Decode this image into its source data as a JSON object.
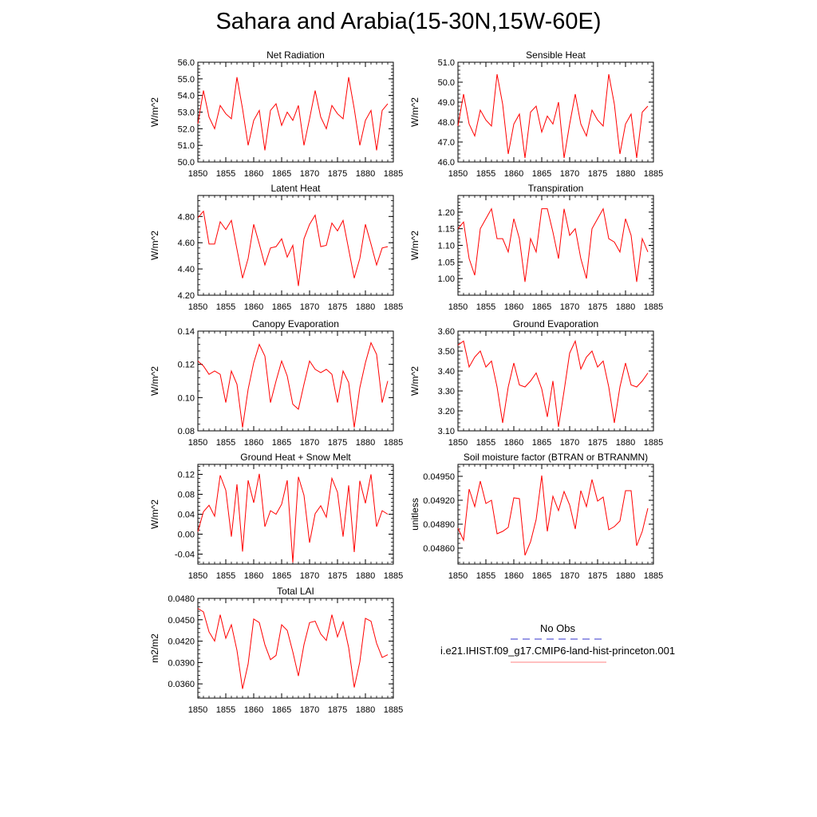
{
  "page": {
    "title": "Sahara and Arabia(15-30N,15W-60E)"
  },
  "legend": {
    "entries": [
      {
        "label": "No Obs",
        "color": "#3333cc",
        "style": "dashed"
      },
      {
        "label": "i.e21.IHIST.f09_g17.CMIP6-land-hist-princeton.001",
        "color": "#ff8080",
        "style": "solid"
      }
    ]
  },
  "colors": {
    "series": "#ff0000",
    "axes": "#000000"
  },
  "chart_data": [
    {
      "type": "line",
      "title": "Net Radiation",
      "xlabel": "",
      "ylabel": "W/m^2",
      "xlim": [
        1850,
        1885
      ],
      "ylim": [
        50.0,
        56.0
      ],
      "xticks": [
        "1850",
        "1855",
        "1860",
        "1865",
        "1870",
        "1875",
        "1880",
        "1885"
      ],
      "yticks": [
        "50.0",
        "51.0",
        "52.0",
        "53.0",
        "54.0",
        "55.0",
        "56.0"
      ],
      "series": [
        {
          "x_start": 1850,
          "values": [
            52.3,
            54.3,
            52.7,
            52.0,
            53.4,
            52.9,
            52.6,
            55.1,
            53.2,
            51.0,
            52.5,
            53.1,
            50.7,
            53.1,
            53.5,
            52.2,
            53.0,
            52.5,
            53.4,
            51.0,
            52.6,
            54.3,
            52.7,
            52.0,
            53.4,
            52.9,
            52.6,
            55.1,
            53.2,
            51.0,
            52.5,
            53.1,
            50.7,
            53.1,
            53.5
          ]
        }
      ]
    },
    {
      "type": "line",
      "title": "Sensible Heat",
      "xlabel": "",
      "ylabel": "W/m^2",
      "xlim": [
        1850,
        1885
      ],
      "ylim": [
        46.0,
        51.0
      ],
      "xticks": [
        "1850",
        "1855",
        "1860",
        "1865",
        "1870",
        "1875",
        "1880",
        "1885"
      ],
      "yticks": [
        "46.0",
        "47.0",
        "48.0",
        "49.0",
        "50.0",
        "51.0"
      ],
      "series": [
        {
          "x_start": 1850,
          "values": [
            47.8,
            49.4,
            47.9,
            47.3,
            48.6,
            48.1,
            47.8,
            50.4,
            48.9,
            46.4,
            47.9,
            48.4,
            46.2,
            48.5,
            48.8,
            47.5,
            48.3,
            47.9,
            49.0,
            46.2,
            47.9,
            49.4,
            47.9,
            47.3,
            48.6,
            48.1,
            47.8,
            50.4,
            48.9,
            46.4,
            47.9,
            48.4,
            46.2,
            48.5,
            48.8
          ]
        }
      ]
    },
    {
      "type": "line",
      "title": "Latent Heat",
      "xlabel": "",
      "ylabel": "W/m^2",
      "xlim": [
        1850,
        1885
      ],
      "ylim": [
        4.2,
        4.96
      ],
      "xticks": [
        "1850",
        "1855",
        "1860",
        "1865",
        "1870",
        "1875",
        "1880",
        "1885"
      ],
      "yticks": [
        "4.20",
        "4.40",
        "4.60",
        "4.80"
      ],
      "series": [
        {
          "x_start": 1850,
          "values": [
            4.79,
            4.84,
            4.59,
            4.59,
            4.76,
            4.7,
            4.77,
            4.55,
            4.33,
            4.48,
            4.74,
            4.59,
            4.43,
            4.56,
            4.57,
            4.63,
            4.49,
            4.58,
            4.27,
            4.63,
            4.74,
            4.81,
            4.57,
            4.58,
            4.75,
            4.69,
            4.77,
            4.55,
            4.33,
            4.48,
            4.74,
            4.59,
            4.43,
            4.56,
            4.57
          ]
        }
      ]
    },
    {
      "type": "line",
      "title": "Transpiration",
      "xlabel": "",
      "ylabel": "W/m^2",
      "xlim": [
        1850,
        1885
      ],
      "ylim": [
        0.95,
        1.25
      ],
      "xticks": [
        "1850",
        "1855",
        "1860",
        "1865",
        "1870",
        "1875",
        "1880",
        "1885"
      ],
      "yticks": [
        "1.00",
        "1.05",
        "1.10",
        "1.15",
        "1.20"
      ],
      "series": [
        {
          "x_start": 1850,
          "values": [
            1.15,
            1.17,
            1.06,
            1.01,
            1.15,
            1.18,
            1.21,
            1.12,
            1.12,
            1.08,
            1.18,
            1.12,
            0.99,
            1.12,
            1.08,
            1.21,
            1.21,
            1.14,
            1.06,
            1.21,
            1.13,
            1.15,
            1.06,
            1.0,
            1.15,
            1.18,
            1.21,
            1.12,
            1.11,
            1.08,
            1.18,
            1.13,
            0.99,
            1.12,
            1.08
          ]
        }
      ]
    },
    {
      "type": "line",
      "title": "Canopy Evaporation",
      "xlabel": "",
      "ylabel": "W/m^2",
      "xlim": [
        1850,
        1885
      ],
      "ylim": [
        0.08,
        0.14
      ],
      "xticks": [
        "1850",
        "1855",
        "1860",
        "1865",
        "1870",
        "1875",
        "1880",
        "1885"
      ],
      "yticks": [
        "0.08",
        "0.10",
        "0.12",
        "0.14"
      ],
      "series": [
        {
          "x_start": 1850,
          "values": [
            0.122,
            0.119,
            0.114,
            0.116,
            0.114,
            0.097,
            0.116,
            0.108,
            0.082,
            0.105,
            0.121,
            0.132,
            0.125,
            0.097,
            0.11,
            0.122,
            0.113,
            0.096,
            0.093,
            0.108,
            0.122,
            0.117,
            0.115,
            0.117,
            0.114,
            0.097,
            0.116,
            0.109,
            0.082,
            0.106,
            0.121,
            0.133,
            0.126,
            0.097,
            0.11
          ]
        }
      ]
    },
    {
      "type": "line",
      "title": "Ground Evaporation",
      "xlabel": "",
      "ylabel": "W/m^2",
      "xlim": [
        1850,
        1885
      ],
      "ylim": [
        3.1,
        3.6
      ],
      "xticks": [
        "1850",
        "1855",
        "1860",
        "1865",
        "1870",
        "1875",
        "1880",
        "1885"
      ],
      "yticks": [
        "3.10",
        "3.20",
        "3.30",
        "3.40",
        "3.50",
        "3.60"
      ],
      "series": [
        {
          "x_start": 1850,
          "values": [
            3.53,
            3.55,
            3.42,
            3.47,
            3.5,
            3.42,
            3.45,
            3.32,
            3.14,
            3.32,
            3.44,
            3.33,
            3.32,
            3.35,
            3.39,
            3.31,
            3.17,
            3.35,
            3.12,
            3.3,
            3.49,
            3.55,
            3.41,
            3.47,
            3.5,
            3.42,
            3.45,
            3.32,
            3.14,
            3.32,
            3.44,
            3.33,
            3.32,
            3.35,
            3.39
          ]
        }
      ]
    },
    {
      "type": "line",
      "title": "Ground Heat + Snow Melt",
      "xlabel": "",
      "ylabel": "W/m^2",
      "xlim": [
        1850,
        1885
      ],
      "ylim": [
        -0.06,
        0.14
      ],
      "xticks": [
        "1850",
        "1855",
        "1860",
        "1865",
        "1870",
        "1875",
        "1880",
        "1885"
      ],
      "yticks": [
        "-0.04",
        "0.00",
        "0.04",
        "0.08",
        "0.12"
      ],
      "series": [
        {
          "x_start": 1850,
          "values": [
            0.005,
            0.045,
            0.058,
            0.036,
            0.118,
            0.088,
            -0.005,
            0.1,
            -0.035,
            0.108,
            0.063,
            0.121,
            0.015,
            0.047,
            0.04,
            0.06,
            0.108,
            -0.057,
            0.115,
            0.078,
            -0.017,
            0.041,
            0.057,
            0.034,
            0.112,
            0.084,
            -0.005,
            0.098,
            -0.036,
            0.107,
            0.062,
            0.12,
            0.015,
            0.047,
            0.04
          ]
        }
      ]
    },
    {
      "type": "line",
      "title": "Soil moisture factor (BTRAN or BTRANMN)",
      "xlabel": "",
      "ylabel": "unitless",
      "xlim": [
        1850,
        1885
      ],
      "ylim": [
        0.0484,
        0.04965
      ],
      "xticks": [
        "1850",
        "1855",
        "1860",
        "1865",
        "1870",
        "1875",
        "1880",
        "1885"
      ],
      "yticks": [
        "0.04860",
        "0.04890",
        "0.04920",
        "0.04950"
      ],
      "series": [
        {
          "x_start": 1850,
          "values": [
            0.04885,
            0.0487,
            0.04934,
            0.04912,
            0.04944,
            0.04916,
            0.0492,
            0.04878,
            0.04881,
            0.04886,
            0.04923,
            0.04922,
            0.04851,
            0.04868,
            0.04896,
            0.04951,
            0.04881,
            0.04925,
            0.04907,
            0.04931,
            0.04914,
            0.04884,
            0.04932,
            0.04912,
            0.04946,
            0.04919,
            0.04924,
            0.04883,
            0.04887,
            0.04894,
            0.04932,
            0.04932,
            0.04863,
            0.04881,
            0.0491
          ]
        }
      ]
    },
    {
      "type": "line",
      "title": "Total LAI",
      "xlabel": "",
      "ylabel": "m2/m2",
      "xlim": [
        1850,
        1885
      ],
      "ylim": [
        0.034,
        0.048
      ],
      "xticks": [
        "1850",
        "1855",
        "1860",
        "1865",
        "1870",
        "1875",
        "1880",
        "1885"
      ],
      "yticks": [
        "0.0360",
        "0.0390",
        "0.0420",
        "0.0450",
        "0.0480"
      ],
      "series": [
        {
          "x_start": 1850,
          "values": [
            0.0466,
            0.0461,
            0.0433,
            0.042,
            0.0457,
            0.0424,
            0.0443,
            0.0407,
            0.0353,
            0.0388,
            0.0451,
            0.0446,
            0.0415,
            0.0394,
            0.04,
            0.0443,
            0.0435,
            0.0405,
            0.0371,
            0.0415,
            0.0446,
            0.0448,
            0.043,
            0.0421,
            0.0457,
            0.0426,
            0.0447,
            0.0411,
            0.0355,
            0.0391,
            0.0452,
            0.0448,
            0.0417,
            0.0397,
            0.0401
          ]
        }
      ]
    }
  ]
}
